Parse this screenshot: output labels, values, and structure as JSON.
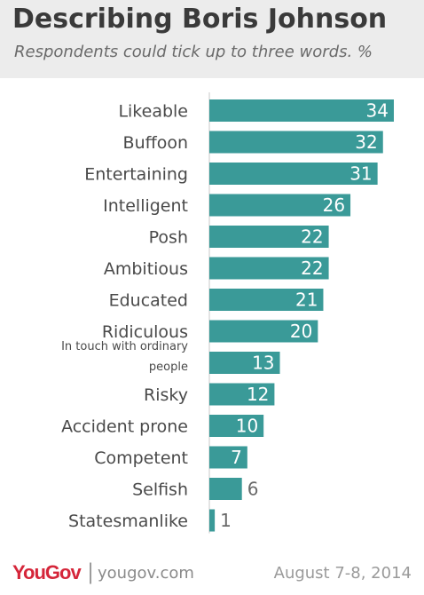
{
  "header": {
    "title": "Describing Boris Johnson",
    "subtitle": "Respondents could tick up to three words. %"
  },
  "footer": {
    "logo": "YouGov",
    "separator": "|",
    "site": "yougov.com",
    "date": "August 7-8, 2014"
  },
  "colors": {
    "bar": "#3a9a98",
    "label": "#4a4a4a",
    "value_label": "#ffffff"
  },
  "chart_data": {
    "type": "bar",
    "orientation": "horizontal",
    "categories": [
      "Likeable",
      "Buffoon",
      "Entertaining",
      "Intelligent",
      "Posh",
      "Ambitious",
      "Educated",
      "Ridiculous",
      "In touch with ordinary people",
      "Risky",
      "Accident prone",
      "Competent",
      "Selfish",
      "Statesmanlike"
    ],
    "values": [
      34,
      32,
      31,
      26,
      22,
      22,
      21,
      20,
      13,
      12,
      10,
      7,
      6,
      1
    ],
    "title": "Describing Boris Johnson",
    "subtitle": "Respondents could tick up to three words. %",
    "xlim": [
      0,
      34
    ],
    "grid": false,
    "legend": "none"
  }
}
